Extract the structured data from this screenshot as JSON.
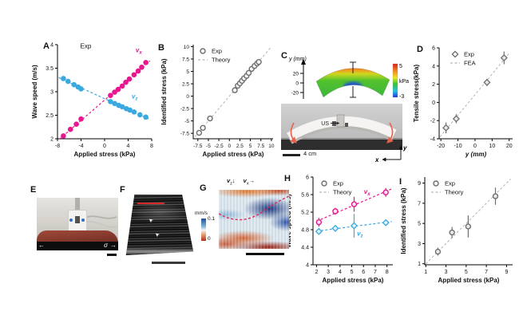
{
  "colors": {
    "pink": "#e8168f",
    "blue": "#3aa9e0",
    "gray": "#6e6e6e",
    "dash_gray": "#b3b3b3",
    "red_arrow": "#e8604c"
  },
  "panels": {
    "a": {
      "letter": "A"
    },
    "b": {
      "letter": "B"
    },
    "c": {
      "letter": "C",
      "axis_label": "y (mm)",
      "ticks": [
        "20",
        "0",
        "-20"
      ],
      "cbar_max": "5",
      "cbar_unit": "kPa",
      "cbar_min": "-3",
      "probe_label": "US",
      "scalebar_label": "4 cm",
      "ax_x": "x",
      "ax_y": "y"
    },
    "d": {
      "letter": "D"
    },
    "e": {
      "letter": "E",
      "arrow_left": "←",
      "sigma": "σ",
      "arrow_right": "→"
    },
    "f": {
      "letter": "F",
      "marker_arrow": "➤"
    },
    "g": {
      "letter": "G",
      "vz_base": "v",
      "vz_sub": "z",
      "arrow_down": "↓",
      "vx_base": "v",
      "vx_sub": "x",
      "arrow_right": "→",
      "cbar_unit": "mm/s",
      "cbar_max": "0.1",
      "cbar_min": "0"
    },
    "h": {
      "letter": "H"
    },
    "i": {
      "letter": "I"
    }
  },
  "chart_data": [
    {
      "id": "A",
      "type": "scatter",
      "xlabel": "Applied stress (kPa)",
      "ylabel": "Wave speed (m/s)",
      "xlim": [
        -8,
        8
      ],
      "ylim": [
        2,
        4
      ],
      "xticks": [
        -8,
        -4,
        0,
        4,
        8
      ],
      "yticks": [
        2,
        2.5,
        3,
        3.5,
        4
      ],
      "annotation": {
        "text": "Exp",
        "x": -3.2,
        "y": 3.92
      },
      "series": [
        {
          "name": "vx",
          "lb": "v",
          "ls": "x",
          "label_pos": [
            5.8,
            3.84
          ],
          "color": "#e8168f",
          "marker": "circle_filled",
          "trend": true,
          "trend_range": [
            -7.7,
            7.7
          ],
          "points": [
            [
              -7,
              2.06
            ],
            [
              -5.8,
              2.2
            ],
            [
              -4.8,
              2.31
            ],
            [
              -4,
              2.42
            ],
            [
              1,
              2.92
            ],
            [
              1.7,
              2.99
            ],
            [
              2.3,
              3.05
            ],
            [
              3,
              3.12
            ],
            [
              3.6,
              3.2
            ],
            [
              4.2,
              3.27
            ],
            [
              5,
              3.36
            ],
            [
              5.7,
              3.44
            ],
            [
              6.3,
              3.52
            ],
            [
              7,
              3.62
            ]
          ]
        },
        {
          "name": "vz",
          "lb": "v",
          "ls": "z",
          "label_pos": [
            5.1,
            2.86
          ],
          "color": "#3aa9e0",
          "marker": "circle_filled",
          "trend": true,
          "trend_range": [
            -7.8,
            7.8
          ],
          "points": [
            [
              -7,
              3.28
            ],
            [
              -6.2,
              3.22
            ],
            [
              -5.2,
              3.15
            ],
            [
              -4.5,
              3.1
            ],
            [
              -4,
              3.06
            ],
            [
              1,
              2.79
            ],
            [
              1.7,
              2.75
            ],
            [
              2.4,
              2.71
            ],
            [
              3,
              2.68
            ],
            [
              3.7,
              2.64
            ],
            [
              4.3,
              2.61
            ],
            [
              5,
              2.57
            ],
            [
              6,
              2.51
            ],
            [
              7,
              2.46
            ]
          ]
        }
      ]
    },
    {
      "id": "B",
      "type": "scatter",
      "xlabel": "Applied stress (kPa)",
      "ylabel": "Identified stress (kPa)",
      "xlim": [
        -8.6,
        10.4
      ],
      "ylim": [
        -8.6,
        10.4
      ],
      "xticks": [
        -7.5,
        -5,
        -2.5,
        0,
        2.5,
        5,
        7.5,
        10
      ],
      "yticks": [
        -7.5,
        -5,
        -2.5,
        0,
        2.5,
        5,
        7.5,
        10
      ],
      "legend": [
        {
          "marker": "circle_open",
          "color": "#6e6e6e",
          "label": "Exp"
        },
        {
          "marker": "dash",
          "color": "#b3b3b3",
          "label": "Theory"
        }
      ],
      "fit": {
        "slope": 1,
        "intercept": 0,
        "range": [
          -8.2,
          9.8
        ]
      },
      "series": [
        {
          "name": "Exp",
          "color": "#6e6e6e",
          "marker": "circle_open",
          "mfill": "#f5f5f5",
          "points": [
            [
              -7.2,
              -7.4
            ],
            [
              -6.3,
              -6.4
            ],
            [
              -4.6,
              -4.5
            ],
            [
              1.3,
              1.2
            ],
            [
              2,
              2.1
            ],
            [
              2.5,
              2.6
            ],
            [
              3,
              3.1
            ],
            [
              3.5,
              3.6
            ],
            [
              4.1,
              4.1
            ],
            [
              4.6,
              4.7
            ],
            [
              5.3,
              5.5
            ],
            [
              6,
              6.1
            ],
            [
              6.6,
              6.6
            ],
            [
              7,
              6.9
            ]
          ]
        }
      ]
    },
    {
      "id": "D",
      "type": "scatter",
      "xlabel": "y (mm)",
      "xlabel_italic": true,
      "ylabel": "Tensile stress(kPa)",
      "xlim": [
        -21,
        22
      ],
      "ylim": [
        -4,
        6
      ],
      "xticks": [
        -20,
        -10,
        0,
        10,
        20
      ],
      "yticks": [
        -4,
        -2,
        0,
        2,
        4,
        6
      ],
      "legend": [
        {
          "marker": "diamond_open",
          "color": "#6e6e6e",
          "label": "Exp"
        },
        {
          "marker": "dash",
          "color": "#b3b3b3",
          "label": "FEA"
        }
      ],
      "fit": {
        "range": [
          -20.5,
          20.5
        ]
      },
      "series": [
        {
          "name": "Exp",
          "color": "#6e6e6e",
          "marker": "diamond_open",
          "mfill": "#e9e9e9",
          "ecolor": "#6e6e6e",
          "points": [
            [
              -17,
              -2.8,
              0.6
            ],
            [
              -11,
              -1.8,
              0.5
            ],
            [
              7,
              2.2,
              0.4
            ],
            [
              17,
              4.9,
              0.7
            ]
          ]
        }
      ]
    },
    {
      "id": "H",
      "type": "scatter",
      "xlabel": "Applied stress (kPa)",
      "ylabel": "Wave speed (m/s)",
      "xlim": [
        1.7,
        8.5
      ],
      "ylim": [
        4,
        6
      ],
      "xticks": [
        2,
        3,
        4,
        5,
        6,
        7,
        8
      ],
      "yticks": [
        4,
        4.4,
        4.8,
        5.2,
        5.6,
        6
      ],
      "legend": [
        {
          "marker": "circle_open",
          "color": "#6e6e6e",
          "label": "Exp"
        },
        {
          "marker": "dash",
          "color": "#b3b3b3",
          "label": "Theory"
        }
      ],
      "series": [
        {
          "name": "vx",
          "lb": "v",
          "ls": "x",
          "label_pos": [
            6.3,
            5.62
          ],
          "color": "#e8168f",
          "marker": "circle_open",
          "mfill": "#fbe3f1",
          "trend": true,
          "trend_range": [
            2,
            8.4
          ],
          "points": [
            [
              2.2,
              4.97,
              0.1
            ],
            [
              3.6,
              5.22,
              0.08
            ],
            [
              5.2,
              5.38,
              0.17
            ],
            [
              7.9,
              5.65,
              0.1
            ]
          ]
        },
        {
          "name": "vz",
          "lb": "v",
          "ls": "z",
          "label_pos": [
            5.7,
            4.66
          ],
          "color": "#3aa9e0",
          "marker": "diamond_open",
          "mfill": "#e1f2fb",
          "trend": true,
          "trend_range": [
            2,
            8.4
          ],
          "points": [
            [
              2.2,
              4.76,
              0.07
            ],
            [
              3.6,
              4.83,
              0.06
            ],
            [
              5.2,
              4.89,
              0.27
            ],
            [
              7.9,
              4.96,
              0.07
            ]
          ]
        }
      ]
    },
    {
      "id": "I",
      "type": "scatter",
      "xlabel": "Applied stress (kPa)",
      "ylabel": "Identified stress (kPa)",
      "xlim": [
        0.9,
        9.6
      ],
      "ylim": [
        0.9,
        9.6
      ],
      "xticks": [
        1,
        3,
        5,
        7,
        9
      ],
      "yticks": [
        1,
        3,
        5,
        7,
        9
      ],
      "legend": [
        {
          "marker": "circle_open",
          "color": "#6e6e6e",
          "label": "Exp"
        },
        {
          "marker": "dash",
          "color": "#b3b3b3",
          "label": "Theory"
        }
      ],
      "fit": {
        "slope": 1,
        "intercept": 0,
        "range": [
          1,
          9.4
        ]
      },
      "series": [
        {
          "name": "Exp",
          "color": "#6e6e6e",
          "marker": "circle_open",
          "mfill": "#e9e9e9",
          "ecolor": "#6e6e6e",
          "points": [
            [
              2.2,
              2.2,
              0.4
            ],
            [
              3.6,
              4.1,
              0.55
            ],
            [
              5.2,
              4.7,
              1.1
            ],
            [
              7.9,
              7.7,
              0.85
            ]
          ]
        }
      ]
    }
  ]
}
